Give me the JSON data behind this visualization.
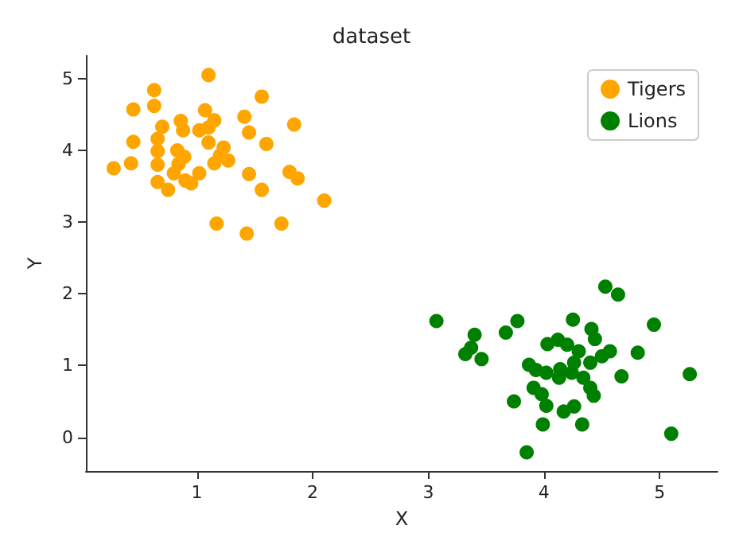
{
  "chart_data": {
    "type": "scatter",
    "title": "dataset",
    "xlabel": "X",
    "ylabel": "Y",
    "xlim": [
      0.04,
      5.5
    ],
    "xticks": [
      1,
      2,
      3,
      4,
      5
    ],
    "ylim": [
      -0.47,
      5.32
    ],
    "yticks": [
      0,
      1,
      2,
      3,
      4,
      5
    ],
    "grid": false,
    "legend": "top right",
    "marker": "circle",
    "series": [
      {
        "name": "Tigers",
        "color": "#ffa500",
        "x": [
          0.28,
          0.43,
          0.45,
          0.45,
          0.63,
          0.63,
          0.66,
          0.66,
          0.66,
          0.7,
          0.66,
          0.75,
          0.8,
          0.83,
          0.86,
          0.88,
          0.89,
          0.84,
          0.9,
          0.95,
          1.02,
          1.02,
          1.07,
          1.1,
          1.1,
          1.15,
          1.1,
          1.15,
          1.23,
          1.27,
          1.17,
          1.41,
          1.45,
          1.45,
          1.43,
          1.56,
          1.6,
          1.56,
          1.73,
          1.84,
          1.8,
          1.87,
          2.1,
          1.2
        ],
        "values": [
          3.75,
          3.82,
          4.12,
          4.57,
          4.84,
          4.62,
          4.16,
          3.99,
          3.8,
          4.33,
          3.56,
          3.45,
          3.68,
          4.0,
          4.41,
          4.28,
          3.91,
          3.81,
          3.58,
          3.54,
          3.68,
          4.28,
          4.56,
          5.05,
          4.32,
          4.42,
          4.11,
          3.82,
          4.04,
          3.86,
          2.98,
          4.47,
          4.25,
          3.67,
          2.84,
          4.75,
          4.09,
          3.45,
          2.98,
          4.36,
          3.7,
          3.61,
          3.3,
          3.93
        ]
      },
      {
        "name": "Lions",
        "color": "#008000",
        "x": [
          3.07,
          3.4,
          3.37,
          3.32,
          3.46,
          3.67,
          3.77,
          3.74,
          3.85,
          3.87,
          3.93,
          4.02,
          3.91,
          3.98,
          4.02,
          3.99,
          4.03,
          4.12,
          4.2,
          4.14,
          4.13,
          4.25,
          4.3,
          4.26,
          4.24,
          4.34,
          4.17,
          4.26,
          4.33,
          4.4,
          4.41,
          4.44,
          4.4,
          4.43,
          4.5,
          4.57,
          4.53,
          4.64,
          4.67,
          4.81,
          4.95,
          5.1,
          5.26
        ],
        "values": [
          1.62,
          1.43,
          1.25,
          1.16,
          1.09,
          1.46,
          1.62,
          0.5,
          -0.21,
          1.01,
          0.94,
          0.9,
          0.69,
          0.6,
          0.44,
          0.18,
          1.3,
          1.36,
          1.29,
          0.95,
          0.83,
          1.64,
          1.2,
          1.04,
          0.9,
          0.83,
          0.36,
          0.43,
          0.18,
          1.04,
          1.51,
          1.37,
          0.69,
          0.58,
          1.13,
          1.2,
          2.1,
          1.99,
          0.85,
          1.18,
          1.57,
          0.05,
          0.88
        ]
      }
    ]
  }
}
